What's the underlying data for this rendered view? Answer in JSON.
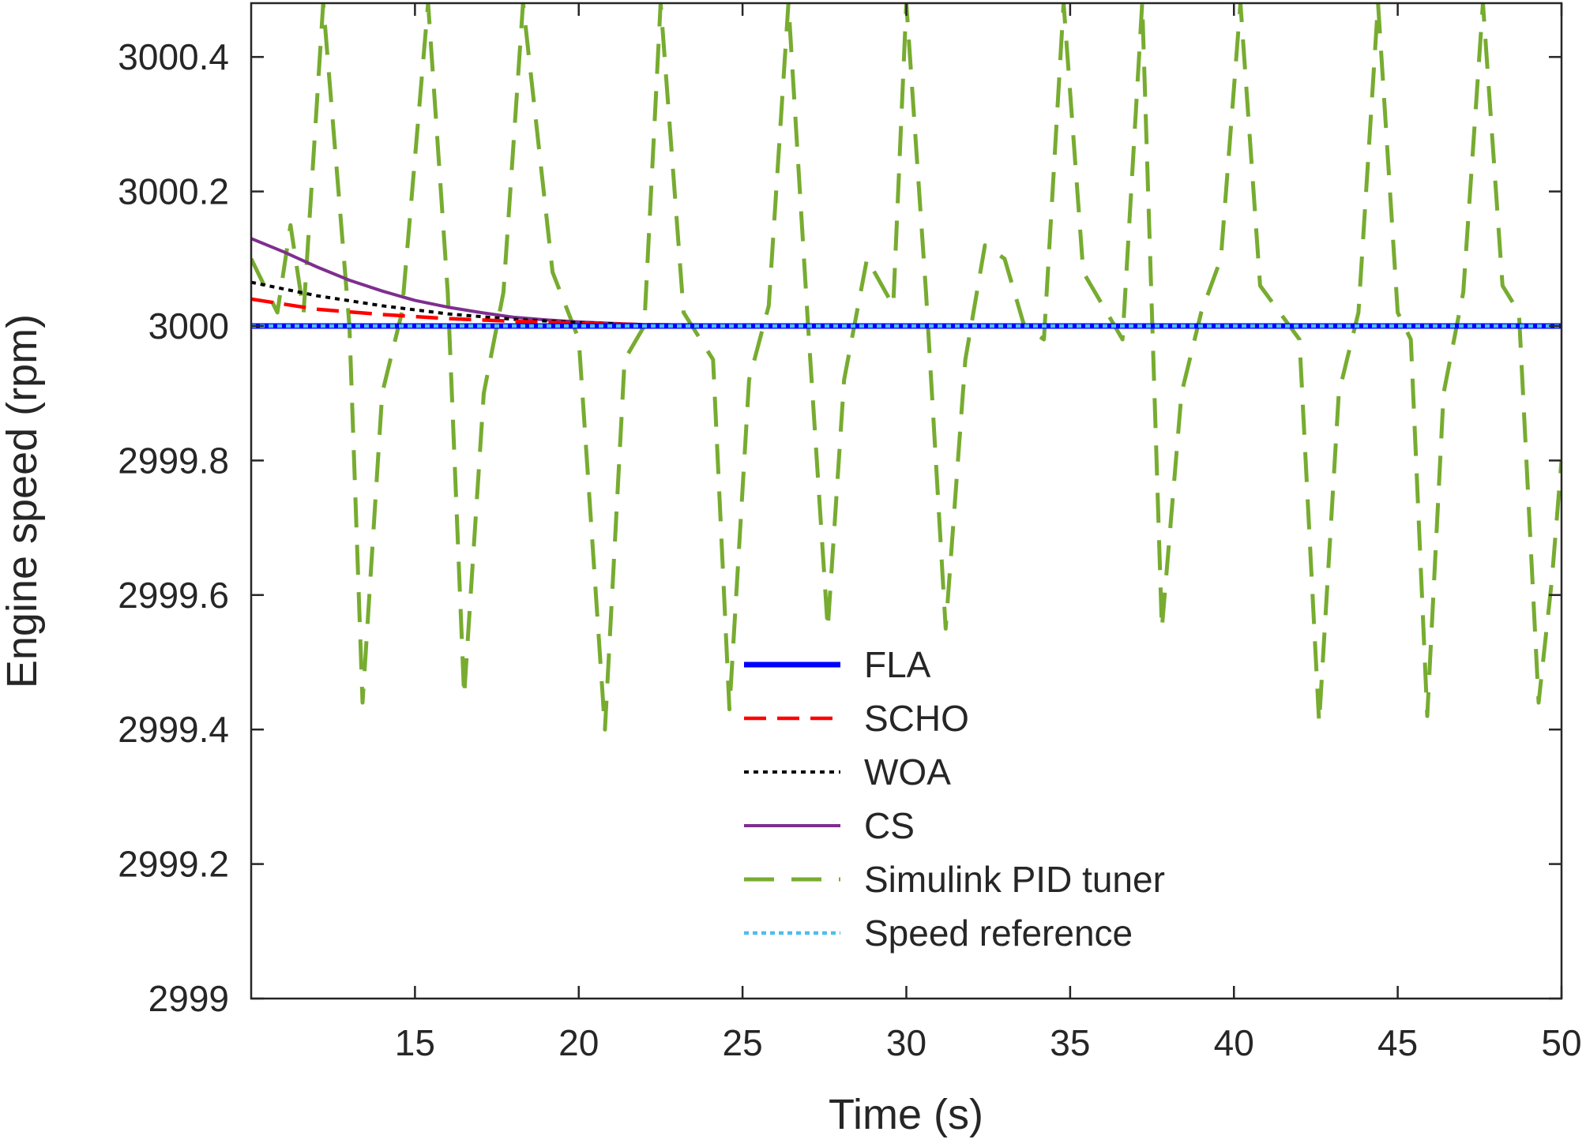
{
  "chart_data": {
    "type": "line",
    "title": "",
    "xlabel": "Time (s)",
    "ylabel": "Engine speed (rpm)",
    "xlim": [
      10,
      50
    ],
    "ylim": [
      2999,
      3000.48
    ],
    "x_ticks": [
      15,
      20,
      25,
      30,
      35,
      40,
      45,
      50
    ],
    "x_tick_labels": [
      "15",
      "20",
      "25",
      "30",
      "35",
      "40",
      "45",
      "50"
    ],
    "y_ticks": [
      2999,
      2999.2,
      2999.4,
      2999.6,
      2999.8,
      3000,
      3000.2,
      3000.4
    ],
    "y_tick_labels": [
      "2999",
      "2999.2",
      "2999.4",
      "2999.6",
      "2999.8",
      "3000",
      "3000.2",
      "3000.4"
    ],
    "grid": false,
    "legend_position": "bottom-center",
    "series": [
      {
        "name": "FLA",
        "color": "#0000ff",
        "style": "solid",
        "x": [
          10,
          50
        ],
        "y": [
          3000.0,
          3000.0
        ]
      },
      {
        "name": "SCHO",
        "color": "#ff0000",
        "style": "dashed",
        "x": [
          10,
          12,
          14,
          16,
          18,
          20,
          22,
          25,
          30,
          50
        ],
        "y": [
          3000.04,
          3000.025,
          3000.017,
          3000.011,
          3000.007,
          3000.004,
          3000.002,
          3000.001,
          3000.0,
          3000.0
        ]
      },
      {
        "name": "WOA",
        "color": "#000000",
        "style": "dotted",
        "x": [
          10,
          12,
          14,
          16,
          18,
          20,
          22,
          25,
          30,
          50
        ],
        "y": [
          3000.065,
          3000.045,
          3000.03,
          3000.018,
          3000.01,
          3000.005,
          3000.002,
          3000.001,
          3000.0,
          3000.0
        ]
      },
      {
        "name": "CS",
        "color": "#7e2f8e",
        "style": "solid",
        "x": [
          10,
          11,
          12,
          13,
          14,
          15,
          16,
          17,
          18,
          19,
          20,
          21,
          22,
          23,
          25,
          30,
          50
        ],
        "y": [
          3000.13,
          3000.11,
          3000.088,
          3000.068,
          3000.052,
          3000.038,
          3000.028,
          3000.02,
          3000.013,
          3000.009,
          3000.006,
          3000.004,
          3000.002,
          3000.001,
          3000.0,
          3000.0,
          3000.0
        ]
      },
      {
        "name": "Simulink PID tuner",
        "color": "#77ac30",
        "style": "dashed",
        "x": [
          10.0,
          10.8,
          11.2,
          11.6,
          12.2,
          13.0,
          13.4,
          14.0,
          14.6,
          15.4,
          16.0,
          16.5,
          17.1,
          17.7,
          18.3,
          19.2,
          20.0,
          20.8,
          21.4,
          22.0,
          22.5,
          23.2,
          24.1,
          24.6,
          25.2,
          25.8,
          26.4,
          27.0,
          27.6,
          28.1,
          28.8,
          29.6,
          30.0,
          30.6,
          31.2,
          31.8,
          32.4,
          33.0,
          33.6,
          34.2,
          34.8,
          35.4,
          36.0,
          36.6,
          37.2,
          37.8,
          38.4,
          39.0,
          39.6,
          40.2,
          40.8,
          41.4,
          42.0,
          42.6,
          43.2,
          43.8,
          44.4,
          45.0,
          45.4,
          45.9,
          46.4,
          47.0,
          47.6,
          48.2,
          48.7,
          49.3,
          49.7,
          50.0
        ],
        "y": [
          3000.1,
          3000.02,
          3000.15,
          3000.02,
          3000.48,
          3000.0,
          2999.44,
          2999.9,
          3000.02,
          3000.48,
          3000.05,
          2999.45,
          2999.9,
          3000.05,
          3000.48,
          3000.08,
          2999.98,
          2999.4,
          2999.95,
          3000.0,
          3000.48,
          3000.02,
          2999.95,
          2999.43,
          2999.92,
          3000.03,
          3000.48,
          3000.0,
          2999.55,
          2999.92,
          3000.1,
          3000.03,
          3000.48,
          3000.05,
          2999.55,
          2999.95,
          3000.12,
          3000.1,
          3000.0,
          2999.98,
          3000.48,
          3000.08,
          3000.03,
          2999.98,
          3000.48,
          2999.55,
          2999.9,
          3000.02,
          3000.1,
          3000.48,
          3000.06,
          3000.02,
          2999.98,
          2999.41,
          2999.9,
          3000.02,
          3000.48,
          3000.02,
          2999.98,
          2999.42,
          2999.9,
          3000.05,
          3000.48,
          3000.06,
          3000.02,
          2999.44,
          2999.62,
          2999.8
        ]
      },
      {
        "name": "Speed reference",
        "color": "#4dbeee",
        "style": "dotted",
        "x": [
          10,
          50
        ],
        "y": [
          3000.0,
          3000.0
        ]
      }
    ]
  }
}
